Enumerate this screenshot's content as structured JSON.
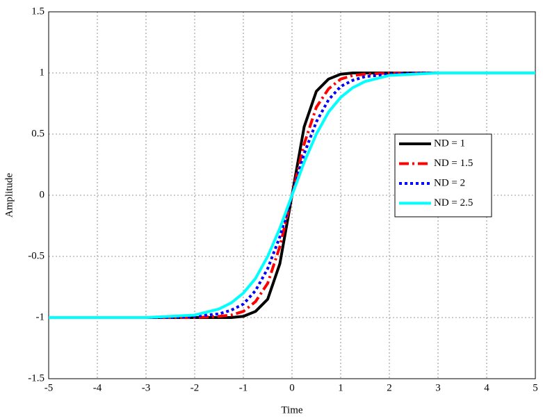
{
  "chart_data": {
    "type": "line",
    "x_label": "Time",
    "y_label": "Amplitude",
    "x": [
      -5,
      -4,
      -3,
      -2.5,
      -2,
      -1.5,
      -1.25,
      -1,
      -0.75,
      -0.5,
      -0.25,
      0,
      0.25,
      0.5,
      0.75,
      1,
      1.25,
      1.5,
      2,
      2.5,
      3,
      4,
      5
    ],
    "series": [
      {
        "name": "ND = 1",
        "color": "#000000",
        "line_style": "solid",
        "values": [
          -1,
          -1,
          -1,
          -1,
          -1,
          -1,
          -1,
          -0.99,
          -0.95,
          -0.85,
          -0.56,
          0,
          0.56,
          0.85,
          0.95,
          0.99,
          1,
          1,
          1,
          1,
          1,
          1,
          1
        ]
      },
      {
        "name": "ND = 1.5",
        "color": "#ff0000",
        "line_style": "dashdot",
        "values": [
          -1,
          -1,
          -1,
          -1,
          -1,
          -0.99,
          -0.98,
          -0.95,
          -0.87,
          -0.72,
          -0.42,
          0,
          0.42,
          0.72,
          0.87,
          0.95,
          0.98,
          0.99,
          1,
          1,
          1,
          1,
          1
        ]
      },
      {
        "name": "ND = 2",
        "color": "#0000ff",
        "line_style": "dotted",
        "values": [
          -1,
          -1,
          -1,
          -1,
          -0.99,
          -0.97,
          -0.94,
          -0.89,
          -0.78,
          -0.6,
          -0.34,
          0,
          0.34,
          0.6,
          0.78,
          0.89,
          0.94,
          0.97,
          0.99,
          1,
          1,
          1,
          1
        ]
      },
      {
        "name": "ND = 2.5",
        "color": "#00ffff",
        "line_style": "solid",
        "values": [
          -1,
          -1,
          -1,
          -0.99,
          -0.98,
          -0.93,
          -0.88,
          -0.8,
          -0.68,
          -0.5,
          -0.27,
          0,
          0.27,
          0.5,
          0.68,
          0.8,
          0.88,
          0.93,
          0.98,
          0.99,
          1,
          1,
          1
        ]
      }
    ],
    "xlim": [
      -5,
      5
    ],
    "ylim": [
      -1.5,
      1.5
    ],
    "xticks": [
      -5,
      -4,
      -3,
      -2,
      -1,
      0,
      1,
      2,
      3,
      4,
      5
    ],
    "yticks": [
      -1.5,
      -1,
      -0.5,
      0,
      0.5,
      1,
      1.5
    ],
    "grid": true,
    "legend": "right"
  }
}
